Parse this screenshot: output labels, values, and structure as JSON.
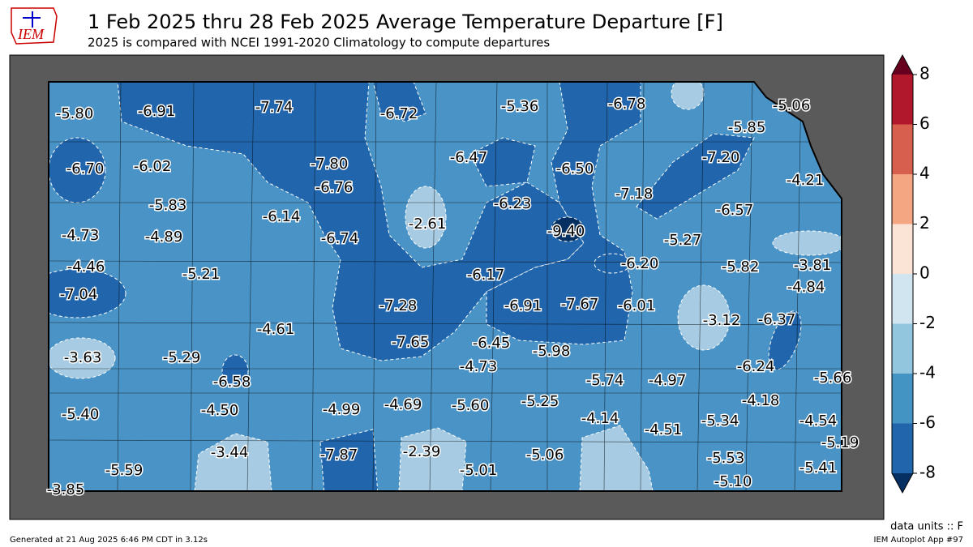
{
  "logo": "IEM",
  "title": "1 Feb 2025 thru 28 Feb 2025 Average Temperature Departure [F]",
  "subtitle": "2025 is compared with NCEI 1991-2020 Climatology to compute departures",
  "station_labels": [
    "-5.80",
    "-6.91",
    "-7.74",
    "-6.72",
    "-5.36",
    "-6.78",
    "-5.06",
    "-5.85",
    "-6.70",
    "-6.02",
    "-6.47",
    "-7.80",
    "-6.50",
    "-7.20",
    "-4.21",
    "-6.76",
    "-7.18",
    "-5.83",
    "-6.23",
    "-6.57",
    "-6.14",
    "-2.61",
    "-9.40",
    "-4.73",
    "-4.89",
    "-6.74",
    "-5.27",
    "-4.46",
    "-6.17",
    "-6.20",
    "-5.82",
    "-3.81",
    "-5.21",
    "-4.84",
    "-7.04",
    "-7.28",
    "-6.91",
    "-7.67",
    "-6.01",
    "-3.12",
    "-6.37",
    "-4.61",
    "-7.65",
    "-6.45",
    "-5.98",
    "-3.63",
    "-5.29",
    "-4.73",
    "-6.24",
    "-5.66",
    "-6.58",
    "-5.74",
    "-4.97",
    "-4.18",
    "-5.40",
    "-4.50",
    "-4.99",
    "-4.69",
    "-5.60",
    "-5.25",
    "-4.14",
    "-5.34",
    "-4.54",
    "-4.51",
    "-5.19",
    "-3.44",
    "-7.87",
    "-2.39",
    "-5.06",
    "-5.01",
    "-5.53",
    "-5.41",
    "-5.59",
    "-5.10",
    "-3.85"
  ],
  "colorbar": {
    "ticks": [
      -8,
      -6,
      -4,
      -2,
      0,
      2,
      4,
      6,
      8
    ],
    "colors": [
      "#2166ac",
      "#4393c3",
      "#92c5de",
      "#d1e5f0",
      "#fbe3d6",
      "#f4a582",
      "#d6604d",
      "#b2182b"
    ],
    "under_color": "#053061",
    "over_color": "#67001f"
  },
  "units_note": "data units :: F",
  "generated": "Generated at 21 Aug 2025 6:46 PM CDT in 3.12s",
  "app": "IEM Autoplot App #97"
}
